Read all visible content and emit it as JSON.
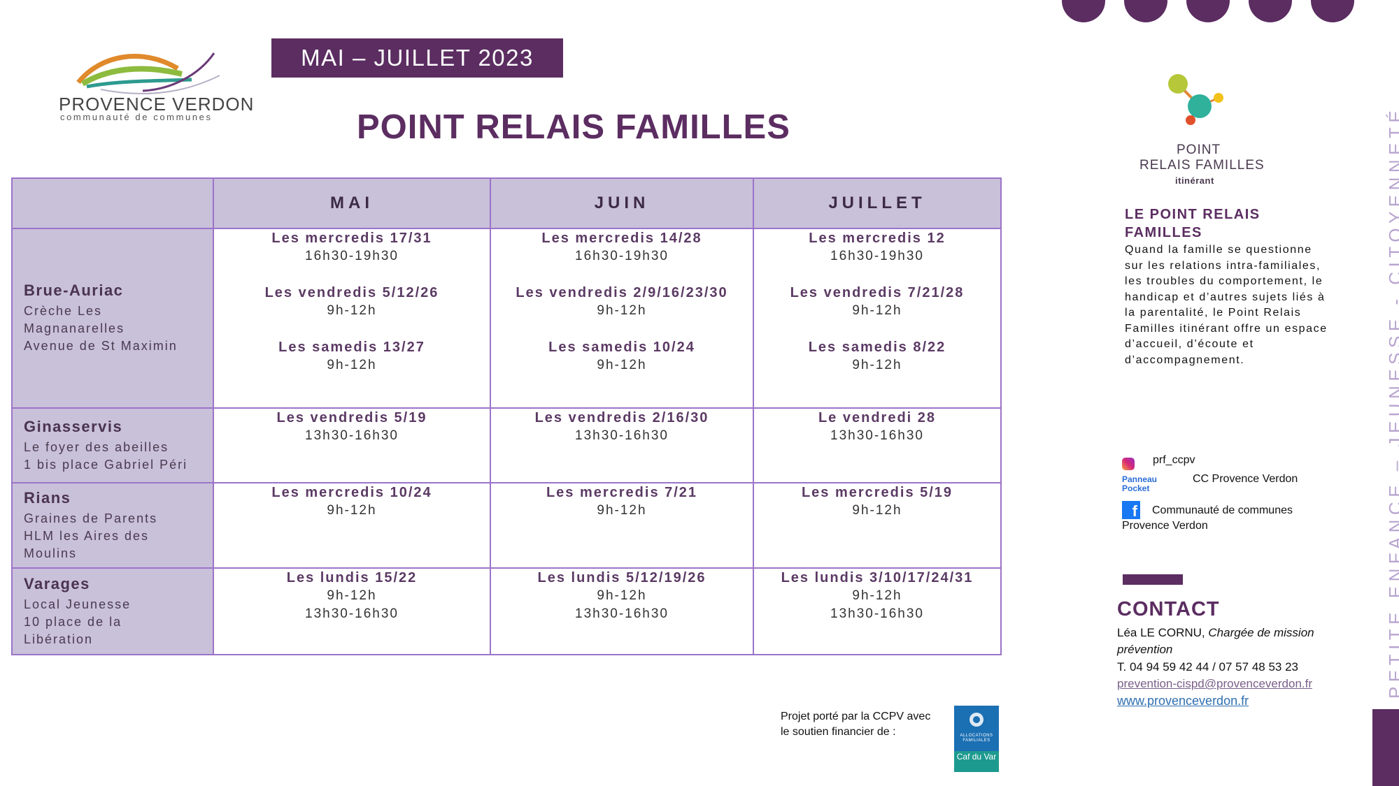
{
  "header": {
    "logo_name": "PROVENCE VERDON",
    "logo_sub": "communauté de communes",
    "period": "MAI – JUILLET 2023",
    "title": "POINT RELAIS FAMILLES"
  },
  "table": {
    "columns": [
      "MAI",
      "JUIN",
      "JUILLET"
    ],
    "rows": [
      {
        "location": "Brue-Auriac",
        "details": [
          "Crèche Les",
          "Magnanarelles",
          "Avenue de St Maximin"
        ],
        "cells": [
          [
            {
              "day": "Les mercredis 17/31",
              "hours": [
                "16h30-19h30"
              ]
            },
            {
              "day": "Les vendredis 5/12/26",
              "hours": [
                "9h-12h"
              ]
            },
            {
              "day": "Les samedis 13/27",
              "hours": [
                "9h-12h"
              ]
            }
          ],
          [
            {
              "day": "Les mercredis 14/28",
              "hours": [
                "16h30-19h30"
              ]
            },
            {
              "day": "Les vendredis 2/9/16/23/30",
              "hours": [
                "9h-12h"
              ]
            },
            {
              "day": "Les samedis 10/24",
              "hours": [
                "9h-12h"
              ]
            }
          ],
          [
            {
              "day": "Les mercredis 12",
              "hours": [
                "16h30-19h30"
              ]
            },
            {
              "day": "Les vendredis 7/21/28",
              "hours": [
                "9h-12h"
              ]
            },
            {
              "day": "Les samedis 8/22",
              "hours": [
                "9h-12h"
              ]
            }
          ]
        ]
      },
      {
        "location": "Ginasservis",
        "details": [
          "Le foyer des abeilles",
          "1 bis place Gabriel Péri"
        ],
        "cells": [
          [
            {
              "day": "Les vendredis 5/19",
              "hours": [
                "13h30-16h30"
              ]
            }
          ],
          [
            {
              "day": "Les vendredis 2/16/30",
              "hours": [
                "13h30-16h30"
              ]
            }
          ],
          [
            {
              "day": "Le vendredi 28",
              "hours": [
                "13h30-16h30"
              ]
            }
          ]
        ]
      },
      {
        "location": "Rians",
        "details": [
          "Graines de Parents",
          "HLM les Aires des",
          "Moulins"
        ],
        "cells": [
          [
            {
              "day": "Les mercredis 10/24",
              "hours": [
                "9h-12h"
              ]
            }
          ],
          [
            {
              "day": "Les mercredis 7/21",
              "hours": [
                "9h-12h"
              ]
            }
          ],
          [
            {
              "day": "Les mercredis 5/19",
              "hours": [
                "9h-12h"
              ]
            }
          ]
        ]
      },
      {
        "location": "Varages",
        "details": [
          "Local Jeunesse",
          "10 place de la",
          "Libération"
        ],
        "cells": [
          [
            {
              "day": "Les lundis 15/22",
              "hours": [
                "9h-12h",
                "13h30-16h30"
              ]
            }
          ],
          [
            {
              "day": "Les lundis 5/12/19/26",
              "hours": [
                "9h-12h",
                "13h30-16h30"
              ]
            }
          ],
          [
            {
              "day": "Les lundis 3/10/17/24/31",
              "hours": [
                "9h-12h",
                "13h30-16h30"
              ]
            }
          ]
        ]
      }
    ]
  },
  "funding": {
    "line1": "Projet porté par la CCPV avec",
    "line2": "le soutien financier de :",
    "caf_top": "ALLOCATIONS FAMILIALES",
    "caf_bottom": "Caf du Var"
  },
  "prf_logo": {
    "line1": "POINT",
    "line2": "RELAIS FAMILLES",
    "line3": "itinérant"
  },
  "about": {
    "title": "LE POINT RELAIS FAMILLES",
    "text": "Quand la famille se questionne sur les relations intra-familiales, les troubles du comportement, le handicap et d’autres sujets liés à la parentalité, le Point Relais Familles itinérant offre un espace d’accueil, d’écoute et d’accompagnement."
  },
  "social": {
    "instagram": "prf_ccpv",
    "panneau_pocket_icon": "Panneau Pocket",
    "panneau_pocket": "CC Provence Verdon",
    "facebook_line1": "Communauté de communes",
    "facebook_line2": "Provence Verdon"
  },
  "contact": {
    "title": "CONTACT",
    "name": "Léa LE CORNU,",
    "role_line1": "Chargée de mission",
    "role_line2": "prévention",
    "phone": "T. 04 94 59 42 44 /  07 57 48 53 23",
    "email": "prevention-cispd@provenceverdon.fr",
    "website": "www.provenceverdon.fr"
  },
  "side_text": "PETITE ENFANCE – JEUNESSE - CITOYENNETÉ",
  "colors": {
    "accent": "#5b2d61",
    "table_header": "#c9c0da",
    "table_border": "#9b74c9",
    "side_text": "#b8a5cf"
  }
}
